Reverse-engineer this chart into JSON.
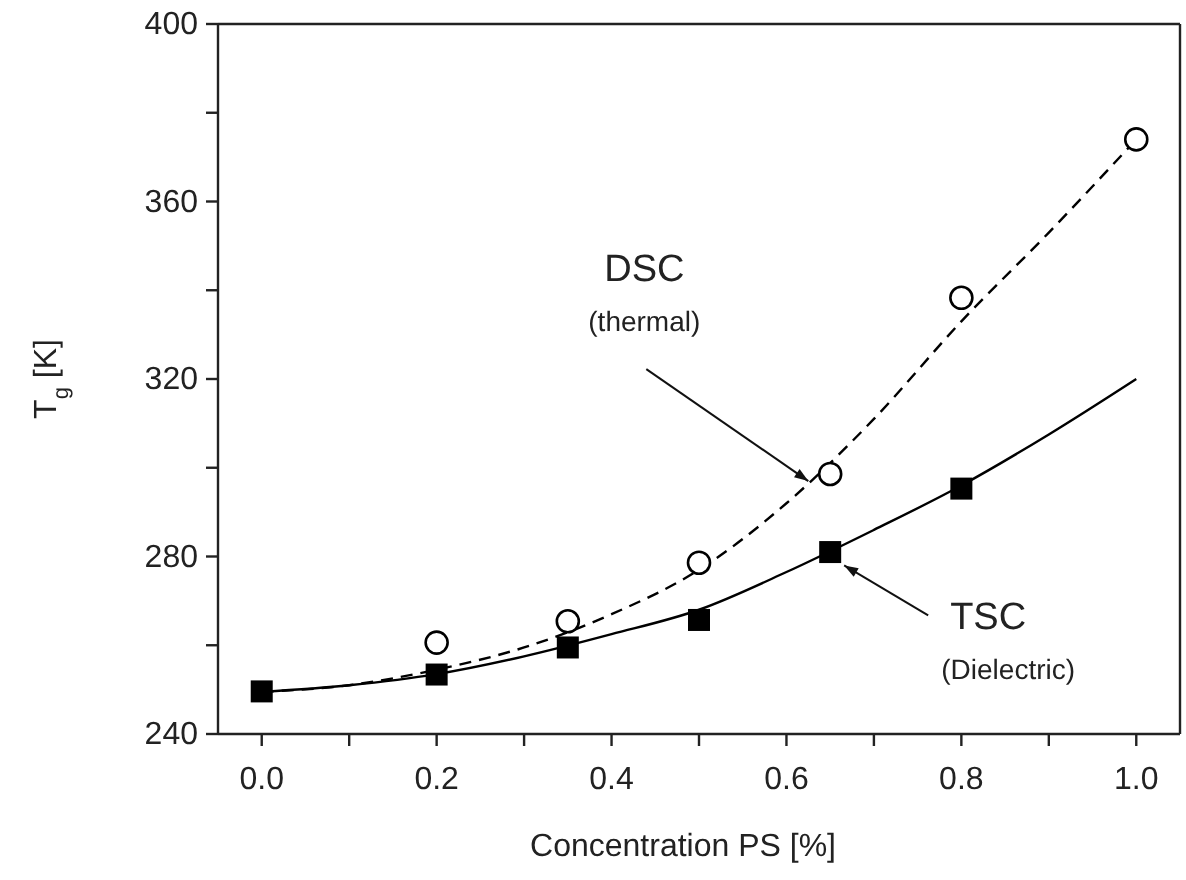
{
  "chart_data": {
    "type": "scatter",
    "xlabel": "Concentration PS [%]",
    "ylabel": "T$_{g}$ [K]",
    "x": [
      0,
      0.2,
      0.35,
      0.5,
      0.65,
      0.8,
      1.0
    ],
    "xlim": [
      -0.05,
      1.05
    ],
    "xticks": [
      {
        "value": 0,
        "label": "0.0"
      },
      {
        "value": 0.1,
        "label": null
      },
      {
        "value": 0.2,
        "label": "0.2"
      },
      {
        "value": 0.3,
        "label": null
      },
      {
        "value": 0.4,
        "label": "0.4"
      },
      {
        "value": 0.5,
        "label": null
      },
      {
        "value": 0.6,
        "label": "0.6"
      },
      {
        "value": 0.7,
        "label": null
      },
      {
        "value": 0.8,
        "label": "0.8"
      },
      {
        "value": 0.9,
        "label": null
      },
      {
        "value": 1.0,
        "label": "1.0"
      }
    ],
    "ylim": [
      240,
      400
    ],
    "yticks": [
      240,
      {
        "value": 260,
        "label": null
      },
      280,
      {
        "value": 300,
        "label": null
      },
      320,
      {
        "value": 340,
        "label": null
      },
      360,
      {
        "value": 380,
        "label": null
      },
      400
    ],
    "series": [
      {
        "type": "line",
        "color": "#000000",
        "marker": "none",
        "line_style": "dashed",
        "x": [
          0,
          0.1,
          0.2,
          0.3,
          0.4,
          0.5,
          0.6,
          0.7,
          0.8,
          0.9,
          1.0
        ],
        "values": [
          249.5,
          251,
          254.5,
          259.5,
          267,
          277,
          292,
          311,
          333,
          353,
          374
        ]
      },
      {
        "type": "line",
        "color": "#000000",
        "marker": "none",
        "line_style": "solid",
        "x": [
          0,
          0.1,
          0.2,
          0.3,
          0.4,
          0.5,
          0.6,
          0.7,
          0.8,
          0.9,
          1.0
        ],
        "values": [
          249.5,
          251,
          253.5,
          257.5,
          262.5,
          268,
          276.5,
          286,
          296,
          307.5,
          320
        ]
      },
      {
        "type": "scatter",
        "color": "#000000",
        "marker": "circle",
        "values": [
          null,
          260.6,
          265.4,
          278.6,
          298.6,
          338.3,
          374
        ]
      },
      {
        "type": "scatter",
        "color": "#000000",
        "marker": "square",
        "values": [
          249.6,
          253.4,
          259.5,
          265.7,
          281,
          295.3,
          null
        ]
      }
    ],
    "annotations": [
      {
        "text": "DSC\n(thermal)",
        "x": 0.625,
        "y": 297
      },
      {
        "text": "TSC\n(Dielectric)",
        "x": 0.666,
        "y": 278
      }
    ],
    "grid": false
  }
}
